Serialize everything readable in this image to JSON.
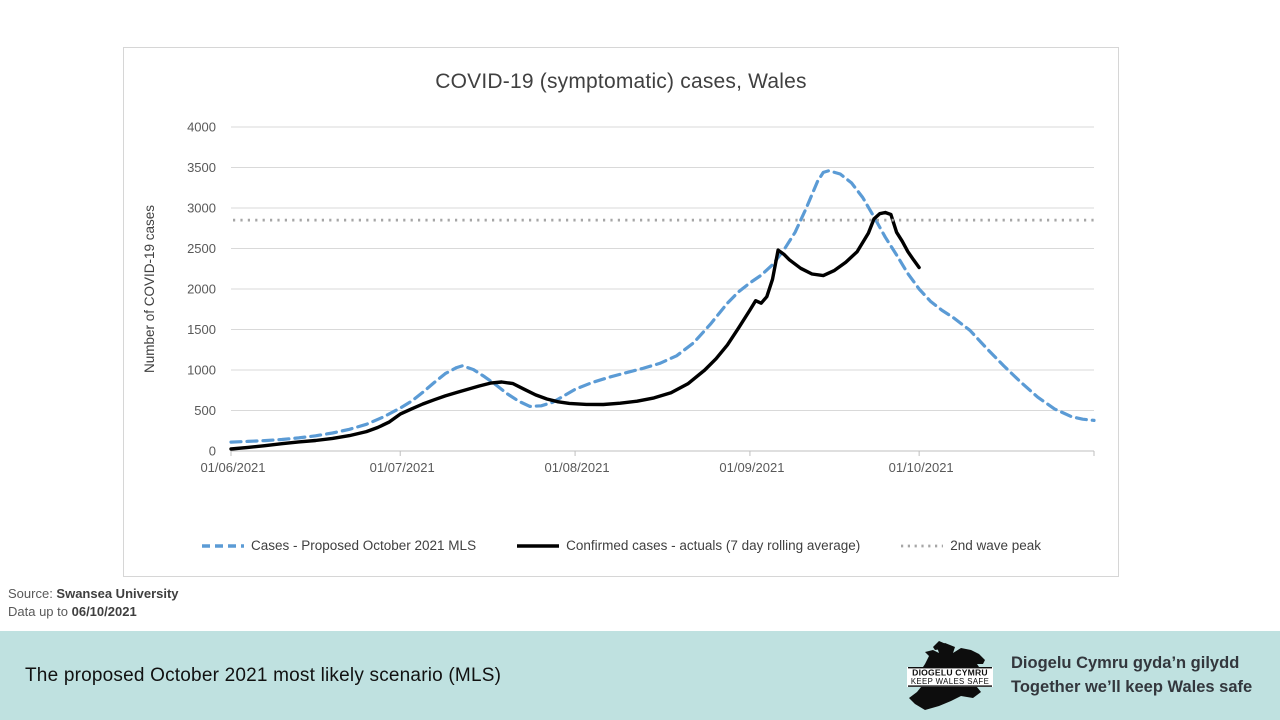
{
  "colors": {
    "mls_blue": "#5B9BD5",
    "actuals_black": "#000000",
    "wave_gray": "#A6A6A6",
    "gridline": "#D9D9D9",
    "axis": "#BFBFBF",
    "tick_text": "#595959",
    "banner_bg": "#BFE1E0"
  },
  "chart_data": {
    "type": "line",
    "title": "COVID-19 (symptomatic) cases, Wales",
    "xlabel": "",
    "ylabel": "Number of COVID-19 cases",
    "ylim": [
      0,
      4000
    ],
    "yticks": [
      0,
      500,
      1000,
      1500,
      2000,
      2500,
      3000,
      3500,
      4000
    ],
    "x_range_days": [
      0,
      153
    ],
    "xtick_days": [
      0,
      30,
      61,
      92,
      122
    ],
    "xtick_labels": [
      "01/06/2021",
      "01/07/2021",
      "01/08/2021",
      "01/09/2021",
      "01/10/2021"
    ],
    "grid": true,
    "legend_position": "bottom",
    "series": [
      {
        "name": "Cases - Proposed October 2021 MLS",
        "kind": "line",
        "style": "dashed",
        "color": "#5B9BD5",
        "points": [
          [
            0,
            110
          ],
          [
            3,
            118
          ],
          [
            6,
            128
          ],
          [
            9,
            142
          ],
          [
            12,
            162
          ],
          [
            15,
            188
          ],
          [
            18,
            222
          ],
          [
            21,
            268
          ],
          [
            24,
            330
          ],
          [
            27,
            420
          ],
          [
            30,
            530
          ],
          [
            32,
            615
          ],
          [
            34,
            725
          ],
          [
            36,
            845
          ],
          [
            38,
            955
          ],
          [
            40,
            1030
          ],
          [
            41,
            1052
          ],
          [
            43,
            1005
          ],
          [
            45,
            915
          ],
          [
            47,
            815
          ],
          [
            49,
            705
          ],
          [
            51,
            615
          ],
          [
            53,
            550
          ],
          [
            55,
            558
          ],
          [
            57,
            600
          ],
          [
            59,
            680
          ],
          [
            61,
            762
          ],
          [
            64,
            845
          ],
          [
            67,
            910
          ],
          [
            70,
            965
          ],
          [
            73,
            1020
          ],
          [
            76,
            1082
          ],
          [
            79,
            1175
          ],
          [
            82,
            1335
          ],
          [
            85,
            1565
          ],
          [
            88,
            1825
          ],
          [
            90,
            1965
          ],
          [
            92,
            2075
          ],
          [
            94,
            2170
          ],
          [
            96,
            2300
          ],
          [
            98,
            2480
          ],
          [
            100,
            2700
          ],
          [
            102,
            3000
          ],
          [
            104,
            3330
          ],
          [
            105,
            3440
          ],
          [
            106,
            3460
          ],
          [
            108,
            3420
          ],
          [
            110,
            3310
          ],
          [
            112,
            3130
          ],
          [
            114,
            2890
          ],
          [
            116,
            2640
          ],
          [
            118,
            2420
          ],
          [
            120,
            2190
          ],
          [
            122,
            2000
          ],
          [
            124,
            1850
          ],
          [
            126,
            1740
          ],
          [
            128,
            1650
          ],
          [
            131,
            1490
          ],
          [
            134,
            1265
          ],
          [
            137,
            1050
          ],
          [
            140,
            850
          ],
          [
            143,
            665
          ],
          [
            146,
            520
          ],
          [
            149,
            425
          ],
          [
            151,
            392
          ],
          [
            153,
            378
          ]
        ]
      },
      {
        "name": "Confirmed cases - actuals (7 day rolling average)",
        "kind": "line",
        "style": "solid",
        "color": "#000000",
        "points": [
          [
            0,
            25
          ],
          [
            3,
            45
          ],
          [
            6,
            65
          ],
          [
            9,
            90
          ],
          [
            12,
            112
          ],
          [
            15,
            130
          ],
          [
            18,
            155
          ],
          [
            21,
            190
          ],
          [
            24,
            240
          ],
          [
            26,
            290
          ],
          [
            28,
            355
          ],
          [
            30,
            455
          ],
          [
            32,
            520
          ],
          [
            34,
            580
          ],
          [
            36,
            632
          ],
          [
            38,
            680
          ],
          [
            40,
            722
          ],
          [
            42,
            762
          ],
          [
            44,
            802
          ],
          [
            46,
            838
          ],
          [
            48,
            852
          ],
          [
            50,
            832
          ],
          [
            52,
            762
          ],
          [
            54,
            692
          ],
          [
            56,
            642
          ],
          [
            58,
            608
          ],
          [
            60,
            588
          ],
          [
            63,
            575
          ],
          [
            66,
            574
          ],
          [
            69,
            590
          ],
          [
            72,
            615
          ],
          [
            75,
            655
          ],
          [
            78,
            718
          ],
          [
            81,
            830
          ],
          [
            84,
            1000
          ],
          [
            86,
            1140
          ],
          [
            88,
            1310
          ],
          [
            90,
            1520
          ],
          [
            92,
            1740
          ],
          [
            93,
            1855
          ],
          [
            94,
            1825
          ],
          [
            95,
            1905
          ],
          [
            96,
            2120
          ],
          [
            97,
            2480
          ],
          [
            98,
            2430
          ],
          [
            99,
            2360
          ],
          [
            101,
            2255
          ],
          [
            103,
            2185
          ],
          [
            105,
            2165
          ],
          [
            107,
            2230
          ],
          [
            109,
            2330
          ],
          [
            111,
            2460
          ],
          [
            113,
            2690
          ],
          [
            114,
            2865
          ],
          [
            115,
            2930
          ],
          [
            116,
            2945
          ],
          [
            117,
            2920
          ],
          [
            118,
            2700
          ],
          [
            119,
            2590
          ],
          [
            120,
            2460
          ],
          [
            121,
            2360
          ],
          [
            122,
            2265
          ]
        ]
      },
      {
        "name": "2nd wave peak",
        "kind": "hline",
        "style": "dotted",
        "color": "#A6A6A6",
        "value": 2850
      }
    ]
  },
  "source": {
    "label": "Source: ",
    "value": "Swansea University",
    "data_label": "Data up to ",
    "data_value": "06/10/2021"
  },
  "banner": {
    "headline": "The proposed October 2021 most likely scenario (MLS)",
    "logo_line1": "DIOGELU CYMRU",
    "logo_line2": "KEEP WALES SAFE",
    "tagline_line1": "Diogelu Cymru gyda’n gilydd",
    "tagline_line2": "Together we’ll keep Wales safe"
  }
}
